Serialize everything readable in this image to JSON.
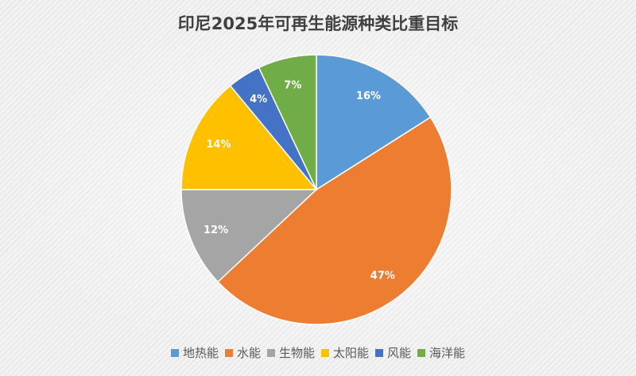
{
  "chart_data": {
    "type": "pie",
    "title": "印尼2025年可再生能源种类比重目标",
    "legend_position": "bottom",
    "start_angle": "top, clockwise",
    "slices": [
      {
        "name": "地热能",
        "value": 16,
        "label": "16%",
        "color": "#5b9bd5"
      },
      {
        "name": "水能",
        "value": 47,
        "label": "47%",
        "color": "#ed7d31"
      },
      {
        "name": "生物能",
        "value": 12,
        "label": "12%",
        "color": "#a5a5a5"
      },
      {
        "name": "太阳能",
        "value": 14,
        "label": "14%",
        "color": "#ffc000"
      },
      {
        "name": "风能",
        "value": 4,
        "label": "4%",
        "color": "#4472c4"
      },
      {
        "name": "海洋能",
        "value": 7,
        "label": "7%",
        "color": "#70ad47"
      }
    ]
  }
}
